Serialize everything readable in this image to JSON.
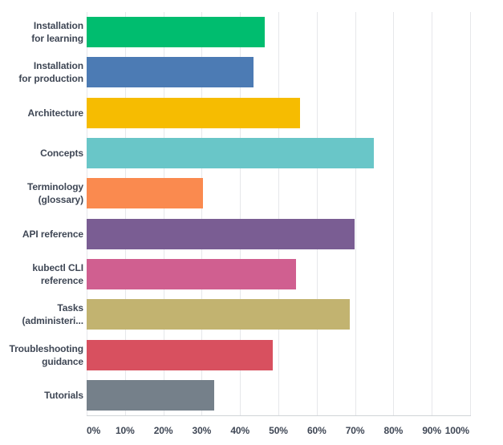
{
  "chart_data": {
    "type": "bar",
    "orientation": "horizontal",
    "title": "",
    "xlabel": "",
    "ylabel": "",
    "xlim": [
      0,
      100
    ],
    "grid": "vertical",
    "legend": false,
    "categories": [
      "Installation for learning",
      "Installation for production",
      "Architecture",
      "Concepts",
      "Terminology (glossary)",
      "API reference",
      "kubectl CLI reference",
      "Tasks (administeri...",
      "Troubleshooting guidance",
      "Tutorials"
    ],
    "category_display_lines": [
      [
        "Installation",
        "for learning"
      ],
      [
        "Installation",
        "for production"
      ],
      [
        "Architecture"
      ],
      [
        "Concepts"
      ],
      [
        "Terminology",
        "(glossary)"
      ],
      [
        "API reference"
      ],
      [
        "kubectl CLI",
        "reference"
      ],
      [
        "Tasks",
        "(administeri..."
      ],
      [
        "Troubleshooting",
        "guidance"
      ],
      [
        "Tutorials"
      ]
    ],
    "values": [
      46.4,
      43.6,
      55.6,
      74.8,
      30.4,
      69.8,
      54.6,
      68.6,
      48.5,
      33.3
    ],
    "bar_colors": [
      "#00BD6F",
      "#4C7BB4",
      "#F6BC01",
      "#69C6C8",
      "#FA8A4F",
      "#7A5D93",
      "#D05F90",
      "#C2B370",
      "#D8505F",
      "#75808A"
    ],
    "x_ticks": [
      "0%",
      "10%",
      "20%",
      "30%",
      "40%",
      "50%",
      "60%",
      "70%",
      "80%",
      "90%",
      "100%"
    ]
  },
  "colors": {
    "text": "#3F4755",
    "gridline": "#E6E7EA",
    "axis": "#D0D4D8",
    "background": "#FFFFFF"
  }
}
